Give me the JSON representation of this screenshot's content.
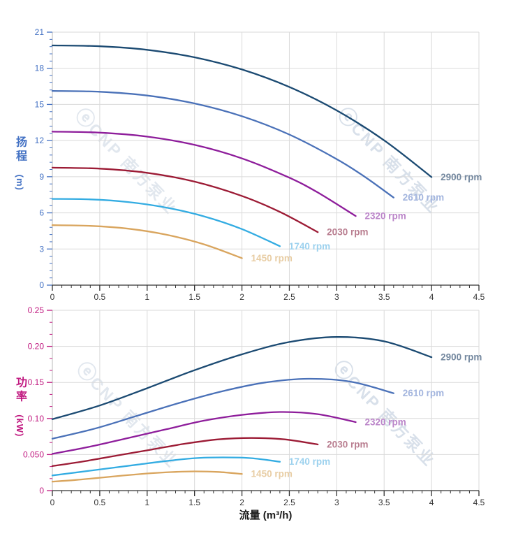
{
  "page": {
    "background": "#ffffff"
  },
  "style": {
    "grid_color": "#dadada",
    "x_axis_line_color": "#333333",
    "y_axis_line_color": "#b8b8b8",
    "x_tick_label_color": "#333333",
    "xlabel_color": "#1a1a1a"
  },
  "watermark": {
    "logo_glyph": "ⓔ",
    "brand": "CNP",
    "brand_cn": "南方泵业",
    "color": "#bac7d9"
  },
  "chart_data": [
    {
      "type": "line",
      "id": "head",
      "ylabel": "扬程",
      "ylabel_unit": "(m)",
      "xlabel": "",
      "axis_color": "#4472c4",
      "grid": true,
      "legend_position": "line-end-labels",
      "x_axis": {
        "min": 0,
        "max": 4.5,
        "minor_per_major": 4,
        "major_ticks": [
          {
            "v": 0,
            "label": "0"
          },
          {
            "v": 0.5,
            "label": "0.5"
          },
          {
            "v": 1,
            "label": "1"
          },
          {
            "v": 1.5,
            "label": "1.5"
          },
          {
            "v": 2,
            "label": "2"
          },
          {
            "v": 2.5,
            "label": "2.5"
          },
          {
            "v": 3,
            "label": "3"
          },
          {
            "v": 3.5,
            "label": "3.5"
          },
          {
            "v": 4,
            "label": "4"
          },
          {
            "v": 4.5,
            "label": "4.5"
          }
        ]
      },
      "y_axis": {
        "min": 0,
        "max": 21,
        "minor_per_major": 4,
        "major_ticks": [
          {
            "v": 0,
            "label": "0"
          },
          {
            "v": 3,
            "label": "3"
          },
          {
            "v": 6,
            "label": "6"
          },
          {
            "v": 9,
            "label": "9"
          },
          {
            "v": 12,
            "label": "12"
          },
          {
            "v": 15,
            "label": "15"
          },
          {
            "v": 18,
            "label": "18"
          },
          {
            "v": 21,
            "label": "21"
          }
        ]
      },
      "series": [
        {
          "name": "2900 rpm",
          "color": "#1b4a72",
          "label_color": "#74889f",
          "points": [
            [
              0,
              19.9
            ],
            [
              0.5,
              19.83
            ],
            [
              1,
              19.53
            ],
            [
              1.5,
              18.91
            ],
            [
              2,
              17.9
            ],
            [
              2.5,
              16.45
            ],
            [
              3,
              14.5
            ],
            [
              3.5,
              12.02
            ],
            [
              4,
              8.97
            ]
          ]
        },
        {
          "name": "2610 rpm",
          "color": "#4a71b8",
          "label_color": "#a3b5de",
          "points": [
            [
              0,
              16.12
            ],
            [
              0.5,
              16.05
            ],
            [
              1,
              15.74
            ],
            [
              1.5,
              15.08
            ],
            [
              2,
              14.02
            ],
            [
              2.5,
              12.5
            ],
            [
              3,
              10.46
            ],
            [
              3.3,
              8.97
            ],
            [
              3.6,
              7.27
            ]
          ]
        },
        {
          "name": "2320 rpm",
          "color": "#8e1d9b",
          "label_color": "#bb85c9",
          "points": [
            [
              0,
              12.74
            ],
            [
              0.5,
              12.66
            ],
            [
              1,
              12.33
            ],
            [
              1.5,
              11.64
            ],
            [
              2,
              10.52
            ],
            [
              2.5,
              8.92
            ],
            [
              2.8,
              7.69
            ],
            [
              3.2,
              5.74
            ]
          ]
        },
        {
          "name": "2030 rpm",
          "color": "#9c1b35",
          "label_color": "#b97e90",
          "points": [
            [
              0,
              9.75
            ],
            [
              0.5,
              9.67
            ],
            [
              1,
              9.32
            ],
            [
              1.5,
              8.59
            ],
            [
              2,
              7.4
            ],
            [
              2.4,
              6.08
            ],
            [
              2.8,
              4.4
            ]
          ]
        },
        {
          "name": "1740 rpm",
          "color": "#33ace2",
          "label_color": "#9cd1ee",
          "points": [
            [
              0,
              7.16
            ],
            [
              0.4,
              7.12
            ],
            [
              0.8,
              6.9
            ],
            [
              1.2,
              6.44
            ],
            [
              1.6,
              5.71
            ],
            [
              2,
              4.65
            ],
            [
              2.4,
              3.23
            ]
          ]
        },
        {
          "name": "1450 rpm",
          "color": "#d9a55e",
          "label_color": "#e8cda4",
          "points": [
            [
              0,
              4.98
            ],
            [
              0.4,
              4.92
            ],
            [
              0.8,
              4.69
            ],
            [
              1.2,
              4.19
            ],
            [
              1.6,
              3.39
            ],
            [
              2,
              2.24
            ]
          ]
        }
      ]
    },
    {
      "type": "line",
      "id": "power",
      "ylabel": "功率",
      "ylabel_unit": "(kW)",
      "xlabel": "流量 (m³/h)",
      "axis_color": "#c11b81",
      "grid": true,
      "legend_position": "line-end-labels",
      "x_axis": {
        "min": 0,
        "max": 4.5,
        "minor_per_major": 4,
        "major_ticks": [
          {
            "v": 0,
            "label": "0"
          },
          {
            "v": 0.5,
            "label": "0.5"
          },
          {
            "v": 1,
            "label": "1"
          },
          {
            "v": 1.5,
            "label": "1.5"
          },
          {
            "v": 2,
            "label": "2"
          },
          {
            "v": 2.5,
            "label": "2.5"
          },
          {
            "v": 3,
            "label": "3"
          },
          {
            "v": 3.5,
            "label": "3.5"
          },
          {
            "v": 4,
            "label": "4"
          },
          {
            "v": 4.5,
            "label": "4.5"
          }
        ]
      },
      "y_axis": {
        "min": 0,
        "max": 0.25,
        "minor_per_major": 2,
        "major_ticks": [
          {
            "v": 0,
            "label": "0"
          },
          {
            "v": 0.05,
            "label": "0.050"
          },
          {
            "v": 0.1,
            "label": "0.10"
          },
          {
            "v": 0.15,
            "label": "0.15"
          },
          {
            "v": 0.2,
            "label": "0.20"
          },
          {
            "v": 0.25,
            "label": "0.25"
          }
        ]
      },
      "series": [
        {
          "name": "2900 rpm",
          "color": "#1b4a72",
          "label_color": "#74889f",
          "points": [
            [
              0,
              0.099
            ],
            [
              0.5,
              0.118
            ],
            [
              1,
              0.142
            ],
            [
              1.5,
              0.167
            ],
            [
              2,
              0.189
            ],
            [
              2.5,
              0.206
            ],
            [
              3,
              0.213
            ],
            [
              3.5,
              0.207
            ],
            [
              4,
              0.185
            ]
          ]
        },
        {
          "name": "2610 rpm",
          "color": "#4a71b8",
          "label_color": "#a3b5de",
          "points": [
            [
              0,
              0.072
            ],
            [
              0.45,
              0.086
            ],
            [
              0.9,
              0.104
            ],
            [
              1.35,
              0.122
            ],
            [
              1.8,
              0.138
            ],
            [
              2.25,
              0.15
            ],
            [
              2.7,
              0.155
            ],
            [
              3.15,
              0.151
            ],
            [
              3.6,
              0.135
            ]
          ]
        },
        {
          "name": "2320 rpm",
          "color": "#8e1d9b",
          "label_color": "#bb85c9",
          "points": [
            [
              0,
              0.051
            ],
            [
              0.4,
              0.061
            ],
            [
              0.8,
              0.073
            ],
            [
              1.2,
              0.085
            ],
            [
              1.6,
              0.097
            ],
            [
              2,
              0.105
            ],
            [
              2.4,
              0.109
            ],
            [
              2.8,
              0.106
            ],
            [
              3.2,
              0.095
            ]
          ]
        },
        {
          "name": "2030 rpm",
          "color": "#9c1b35",
          "label_color": "#b97e90",
          "points": [
            [
              0,
              0.034
            ],
            [
              0.35,
              0.041
            ],
            [
              0.7,
              0.049
            ],
            [
              1.05,
              0.057
            ],
            [
              1.4,
              0.065
            ],
            [
              1.75,
              0.071
            ],
            [
              2.1,
              0.073
            ],
            [
              2.45,
              0.071
            ],
            [
              2.8,
              0.064
            ]
          ]
        },
        {
          "name": "1740 rpm",
          "color": "#33ace2",
          "label_color": "#9cd1ee",
          "points": [
            [
              0,
              0.021
            ],
            [
              0.3,
              0.026
            ],
            [
              0.6,
              0.031
            ],
            [
              0.9,
              0.036
            ],
            [
              1.2,
              0.041
            ],
            [
              1.5,
              0.045
            ],
            [
              1.8,
              0.046
            ],
            [
              2.1,
              0.045
            ],
            [
              2.4,
              0.04
            ]
          ]
        },
        {
          "name": "1450 rpm",
          "color": "#d9a55e",
          "label_color": "#e8cda4",
          "points": [
            [
              0,
              0.0124
            ],
            [
              0.25,
              0.0148
            ],
            [
              0.5,
              0.0178
            ],
            [
              0.75,
              0.0209
            ],
            [
              1,
              0.0237
            ],
            [
              1.25,
              0.0257
            ],
            [
              1.5,
              0.0266
            ],
            [
              1.75,
              0.0259
            ],
            [
              2,
              0.0231
            ]
          ]
        }
      ]
    }
  ]
}
